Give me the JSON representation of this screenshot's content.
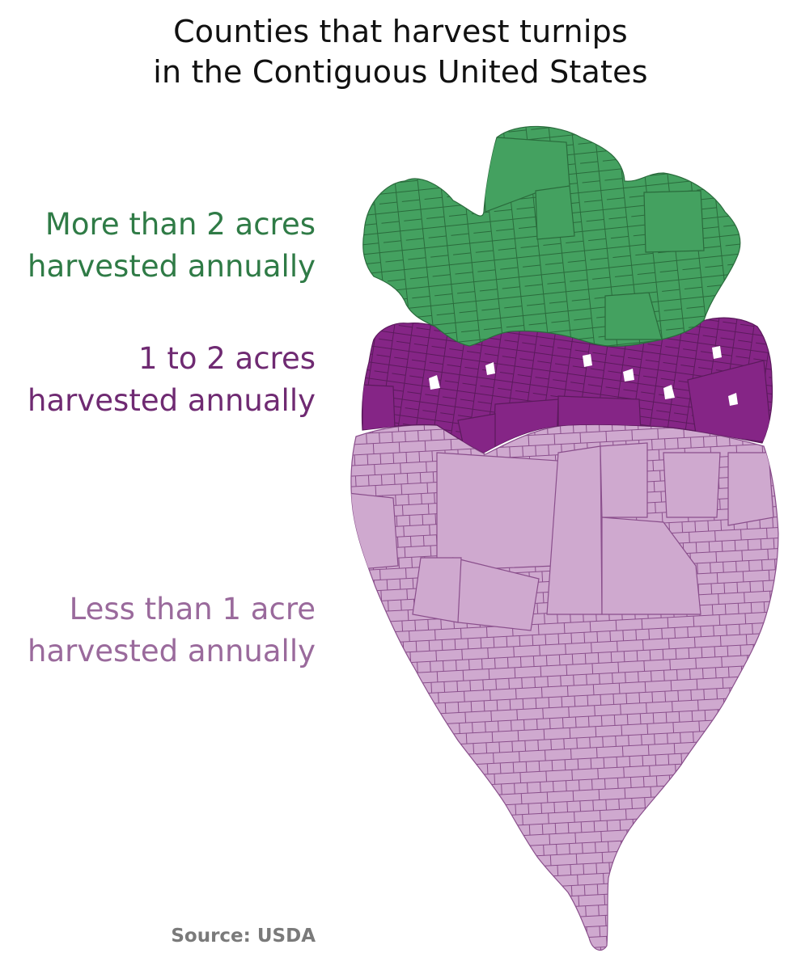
{
  "title": {
    "line1": "Counties that harvest turnips",
    "line2": "in the Contiguous United States"
  },
  "legend": [
    {
      "line1": "More than 2 acres",
      "line2": "harvested annually",
      "color": "#2f7b46",
      "fill": "#44a160"
    },
    {
      "line1": "1 to 2 acres",
      "line2": "harvested annually",
      "color": "#6f2a72",
      "fill": "#852586"
    },
    {
      "line1": "Less than 1 acre",
      "line2": "harvested annually",
      "color": "#9a6a9c",
      "fill": "#cfa9cf"
    }
  ],
  "source": "Source: USDA",
  "colors": {
    "county_stroke_green": "#2a6b3c",
    "county_stroke_purple": "#5b1a5c",
    "county_stroke_light": "#8a4f8c",
    "source_text": "#7a7a7a"
  }
}
